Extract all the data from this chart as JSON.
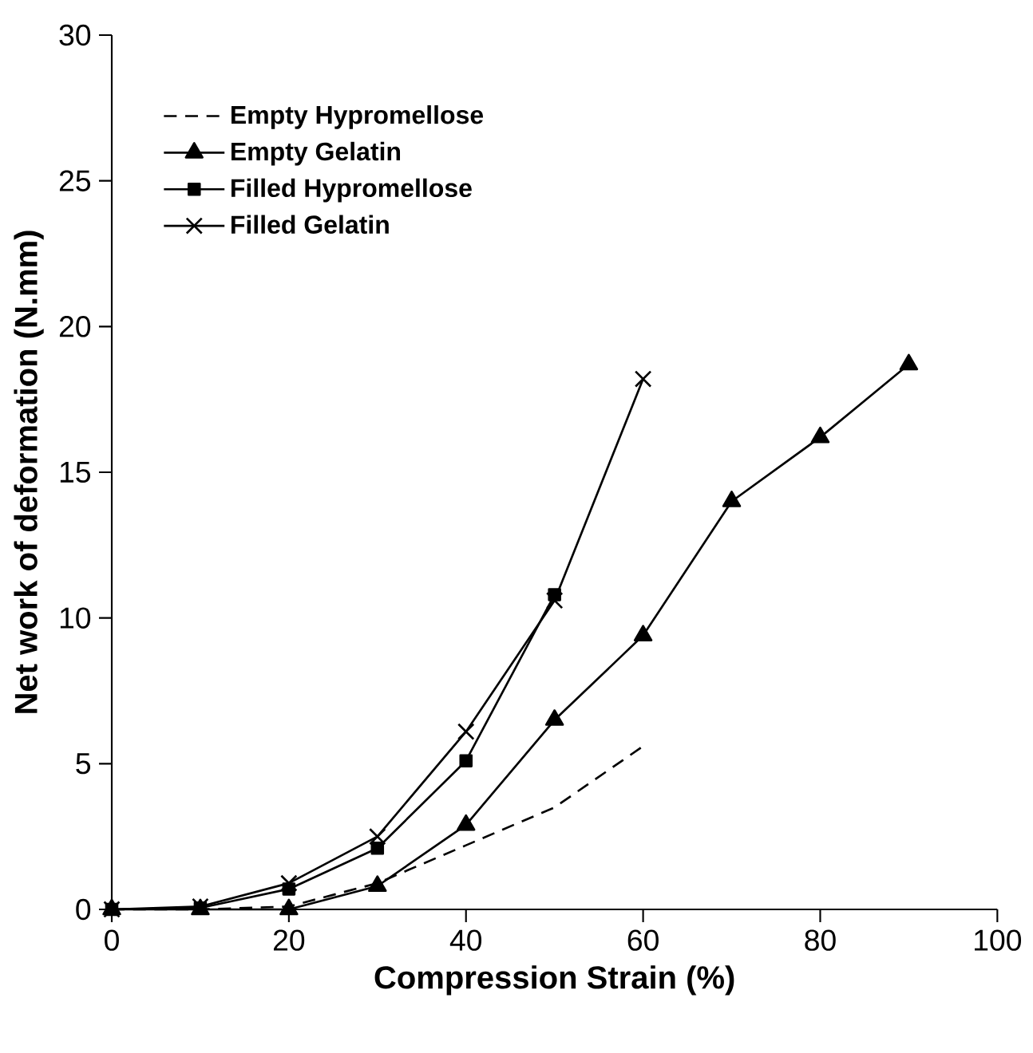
{
  "chart_data": {
    "type": "line",
    "xlabel": "Compression Strain (%)",
    "ylabel": "Net work of deformation (N.mm)",
    "x": [
      0,
      10,
      20,
      30,
      40,
      50,
      60,
      70,
      80,
      90
    ],
    "series": [
      {
        "name": "Empty Hypromellose",
        "color": "#000000",
        "marker": "none",
        "line_style": "dashed",
        "values": [
          0,
          0,
          0.1,
          0.9,
          2.2,
          3.5,
          5.6,
          null,
          null,
          null
        ]
      },
      {
        "name": "Empty Gelatin",
        "color": "#000000",
        "marker": "triangle",
        "line_style": "solid",
        "values": [
          0,
          0,
          0,
          0.8,
          2.9,
          6.5,
          9.4,
          14.0,
          16.2,
          18.7
        ]
      },
      {
        "name": "Filled Hypromellose",
        "color": "#000000",
        "marker": "square",
        "line_style": "solid",
        "values": [
          0,
          0.05,
          0.7,
          2.1,
          5.1,
          10.8,
          null,
          null,
          null,
          null
        ]
      },
      {
        "name": "Filled Gelatin",
        "color": "#000000",
        "marker": "cross",
        "line_style": "solid",
        "values": [
          0,
          0.1,
          0.9,
          2.5,
          6.1,
          10.6,
          18.2,
          null,
          null,
          null
        ]
      }
    ],
    "xlim": [
      0,
      100
    ],
    "ylim": [
      0,
      30
    ],
    "xticks": [
      0,
      20,
      40,
      60,
      80,
      100
    ],
    "yticks": [
      0,
      5,
      10,
      15,
      20,
      25,
      30
    ],
    "grid": false,
    "legend": "top left"
  }
}
